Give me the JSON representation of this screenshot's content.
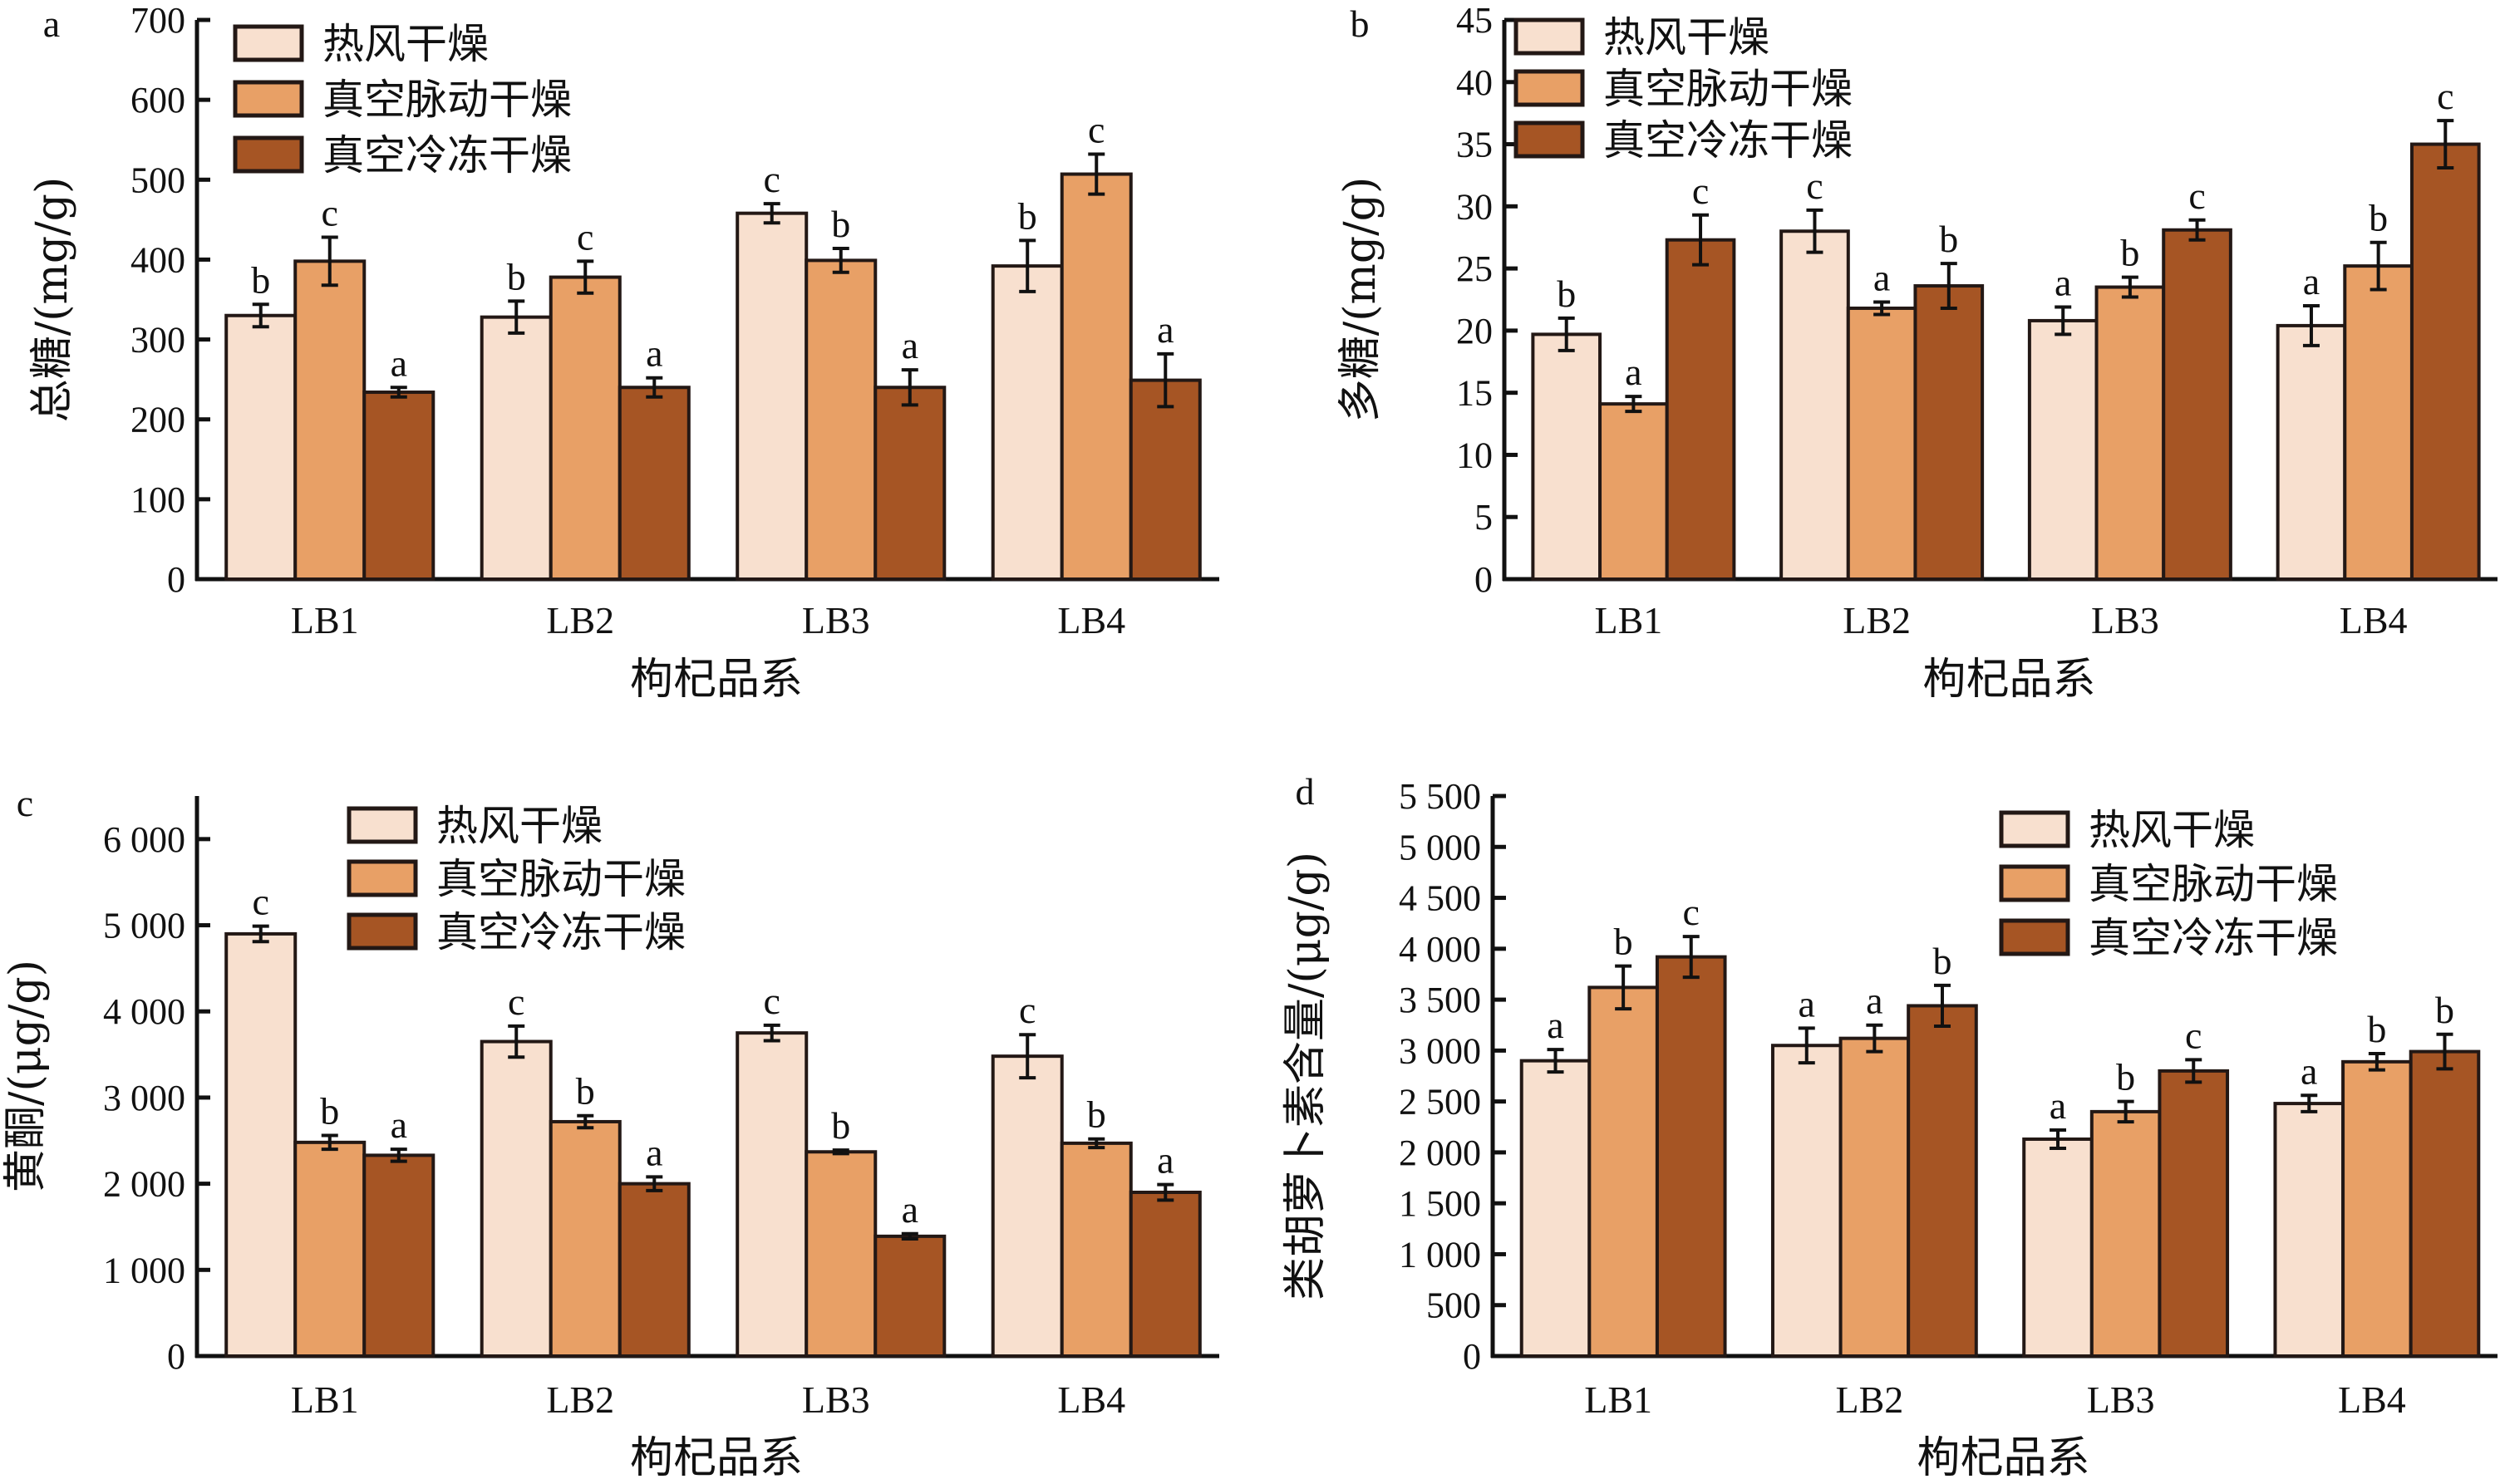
{
  "figure": {
    "series_names": [
      "热风干燥",
      "真空脉动干燥",
      "真空冷冻干燥"
    ],
    "series_colors": [
      "#f8e0cf",
      "#e8a066",
      "#a65524"
    ],
    "edge_color": "#231815"
  },
  "chart_data": [
    {
      "panel": "a",
      "type": "bar",
      "title": "",
      "xlabel": "枸杞品系",
      "ylabel": "总糖/(mg/g)",
      "categories": [
        "LB1",
        "LB2",
        "LB3",
        "LB4"
      ],
      "ylim": [
        0,
        700
      ],
      "yticks": [
        0,
        100,
        200,
        300,
        400,
        500,
        600,
        700
      ],
      "ytick_labels": [
        "0",
        "100",
        "200",
        "300",
        "400",
        "500",
        "600",
        "700"
      ],
      "legend_position": "top-left",
      "grid": false,
      "series": [
        {
          "name": "热风干燥",
          "values": [
            330,
            328,
            458,
            392
          ],
          "errors": [
            14,
            20,
            12,
            32
          ],
          "letters": [
            "b",
            "b",
            "c",
            "b"
          ]
        },
        {
          "name": "真空脉动干燥",
          "values": [
            398,
            378,
            399,
            507
          ],
          "errors": [
            30,
            20,
            15,
            25
          ],
          "letters": [
            "c",
            "c",
            "b",
            "c"
          ]
        },
        {
          "name": "真空冷冻干燥",
          "values": [
            234,
            240,
            240,
            249
          ],
          "errors": [
            6,
            12,
            22,
            33
          ],
          "letters": [
            "a",
            "a",
            "a",
            "a"
          ]
        }
      ]
    },
    {
      "panel": "b",
      "type": "bar",
      "title": "",
      "xlabel": "枸杞品系",
      "ylabel": "多糖/(mg/g)",
      "categories": [
        "LB1",
        "LB2",
        "LB3",
        "LB4"
      ],
      "ylim": [
        0,
        45
      ],
      "yticks": [
        0,
        5,
        10,
        15,
        20,
        25,
        30,
        35,
        40,
        45
      ],
      "ytick_labels": [
        "0",
        "5",
        "10",
        "15",
        "20",
        "25",
        "30",
        "35",
        "40",
        "45"
      ],
      "legend_position": "top-left",
      "grid": false,
      "series": [
        {
          "name": "热风干燥",
          "values": [
            19.7,
            28.0,
            20.8,
            20.4
          ],
          "errors": [
            1.3,
            1.7,
            1.1,
            1.6
          ],
          "letters": [
            "b",
            "c",
            "a",
            "a"
          ]
        },
        {
          "name": "真空脉动干燥",
          "values": [
            14.1,
            21.8,
            23.5,
            25.2
          ],
          "errors": [
            0.6,
            0.5,
            0.8,
            1.9
          ],
          "letters": [
            "a",
            "a",
            "b",
            "b"
          ]
        },
        {
          "name": "真空冷冻干燥",
          "values": [
            27.3,
            23.6,
            28.1,
            35.0
          ],
          "errors": [
            2.0,
            1.8,
            0.8,
            1.9
          ],
          "letters": [
            "c",
            "b",
            "c",
            "c"
          ]
        }
      ]
    },
    {
      "panel": "c",
      "type": "bar",
      "title": "",
      "xlabel": "枸杞品系",
      "ylabel": "黄酮/(μg/g)",
      "categories": [
        "LB1",
        "LB2",
        "LB3",
        "LB4"
      ],
      "ylim": [
        0,
        6500
      ],
      "yticks": [
        0,
        1000,
        2000,
        3000,
        4000,
        5000,
        6000
      ],
      "ytick_labels": [
        "0",
        "1 000",
        "2 000",
        "3 000",
        "4 000",
        "5 000",
        "6 000"
      ],
      "legend_position": "top-center",
      "grid": false,
      "series": [
        {
          "name": "热风干燥",
          "values": [
            4900,
            3650,
            3750,
            3480
          ],
          "errors": [
            90,
            180,
            90,
            250
          ],
          "letters": [
            "c",
            "c",
            "c",
            "c"
          ]
        },
        {
          "name": "真空脉动干燥",
          "values": [
            2480,
            2720,
            2370,
            2470
          ],
          "errors": [
            80,
            70,
            20,
            50
          ],
          "letters": [
            "b",
            "b",
            "b",
            "b"
          ]
        },
        {
          "name": "真空冷冻干燥",
          "values": [
            2330,
            2000,
            1390,
            1900
          ],
          "errors": [
            70,
            80,
            30,
            90
          ],
          "letters": [
            "a",
            "a",
            "a",
            "a"
          ]
        }
      ]
    },
    {
      "panel": "d",
      "type": "bar",
      "title": "",
      "xlabel": "枸杞品系",
      "ylabel": "类胡萝卜素含量/(μg/g)",
      "categories": [
        "LB1",
        "LB2",
        "LB3",
        "LB4"
      ],
      "ylim": [
        0,
        5500
      ],
      "yticks": [
        0,
        500,
        1000,
        1500,
        2000,
        2500,
        3000,
        3500,
        4000,
        4500,
        5000,
        5500
      ],
      "ytick_labels": [
        "0",
        "500",
        "1 000",
        "1 500",
        "2 000",
        "2 500",
        "3 000",
        "3 500",
        "4 000",
        "4 500",
        "5 000",
        "5 500"
      ],
      "legend_position": "top-right",
      "grid": false,
      "series": [
        {
          "name": "热风干燥",
          "values": [
            2900,
            3050,
            2130,
            2480
          ],
          "errors": [
            110,
            170,
            90,
            80
          ],
          "letters": [
            "a",
            "a",
            "a",
            "a"
          ]
        },
        {
          "name": "真空脉动干燥",
          "values": [
            3620,
            3120,
            2400,
            2890
          ],
          "errors": [
            210,
            130,
            100,
            80
          ],
          "letters": [
            "b",
            "a",
            "b",
            "b"
          ]
        },
        {
          "name": "真空冷冻干燥",
          "values": [
            3920,
            3440,
            2800,
            2990
          ],
          "errors": [
            200,
            200,
            110,
            170
          ],
          "letters": [
            "c",
            "b",
            "c",
            "b"
          ]
        }
      ]
    }
  ]
}
